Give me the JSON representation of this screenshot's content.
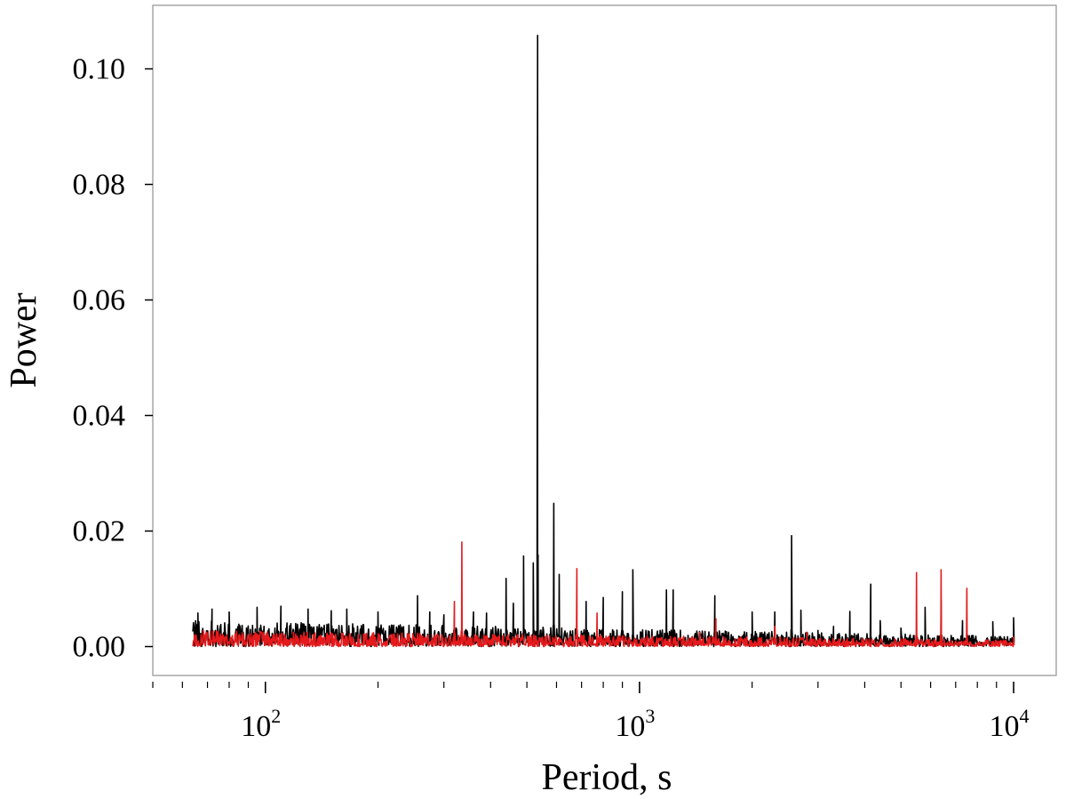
{
  "chart_data": {
    "type": "line",
    "title": "",
    "xlabel": "Period, s",
    "ylabel": "Power",
    "xscale": "log",
    "xlim": [
      50,
      13000
    ],
    "ylim": [
      -0.005,
      0.111
    ],
    "grid": false,
    "legend": "none",
    "x_tick_labels": [
      {
        "value": 100,
        "base": "10",
        "exp": "2"
      },
      {
        "value": 1000,
        "base": "10",
        "exp": "3"
      },
      {
        "value": 10000,
        "base": "10",
        "exp": "4"
      }
    ],
    "y_ticks": [
      0.0,
      0.02,
      0.04,
      0.06,
      0.08,
      0.1
    ],
    "y_tick_labels": [
      "0.00",
      "0.02",
      "0.04",
      "0.06",
      "0.08",
      "0.10"
    ],
    "series": [
      {
        "color": "#000000",
        "x_range": [
          64,
          10000
        ],
        "noise_floor": 0.0015,
        "noise_amplitude": 0.0045,
        "peaks": [
          [
            66,
            0.0058
          ],
          [
            72,
            0.0065
          ],
          [
            80,
            0.006
          ],
          [
            95,
            0.0068
          ],
          [
            110,
            0.007
          ],
          [
            130,
            0.0065
          ],
          [
            150,
            0.0062
          ],
          [
            165,
            0.0065
          ],
          [
            200,
            0.006
          ],
          [
            255,
            0.0088
          ],
          [
            275,
            0.006
          ],
          [
            300,
            0.0055
          ],
          [
            360,
            0.006
          ],
          [
            390,
            0.0058
          ],
          [
            440,
            0.0118
          ],
          [
            460,
            0.0075
          ],
          [
            490,
            0.0157
          ],
          [
            520,
            0.0145
          ],
          [
            534,
            0.1058
          ],
          [
            590,
            0.0248
          ],
          [
            610,
            0.0125
          ],
          [
            720,
            0.0078
          ],
          [
            800,
            0.0085
          ],
          [
            900,
            0.0095
          ],
          [
            960,
            0.0133
          ],
          [
            1180,
            0.0098
          ],
          [
            1230,
            0.0098
          ],
          [
            1590,
            0.0088
          ],
          [
            2000,
            0.006
          ],
          [
            2300,
            0.006
          ],
          [
            2550,
            0.0192
          ],
          [
            2700,
            0.0063
          ],
          [
            3000,
            0.0028
          ],
          [
            3300,
            0.0035
          ],
          [
            3650,
            0.0061
          ],
          [
            4150,
            0.0108
          ],
          [
            4400,
            0.0045
          ],
          [
            5000,
            0.0032
          ],
          [
            5800,
            0.0068
          ],
          [
            6400,
            0.008
          ],
          [
            7300,
            0.0045
          ],
          [
            8800,
            0.0043
          ],
          [
            10000,
            0.005
          ]
        ]
      },
      {
        "color": "#e41a1c",
        "x_range": [
          64,
          10000
        ],
        "noise_floor": 0.0004,
        "noise_amplitude": 0.0028,
        "peaks": [
          [
            320,
            0.0078
          ],
          [
            335,
            0.0181
          ],
          [
            680,
            0.0135
          ],
          [
            770,
            0.0058
          ],
          [
            1450,
            0.0025
          ],
          [
            1600,
            0.0048
          ],
          [
            2300,
            0.0035
          ],
          [
            2800,
            0.0025
          ],
          [
            5500,
            0.0128
          ],
          [
            6400,
            0.0133
          ],
          [
            7500,
            0.0101
          ],
          [
            10000,
            0.0016
          ]
        ]
      }
    ]
  }
}
